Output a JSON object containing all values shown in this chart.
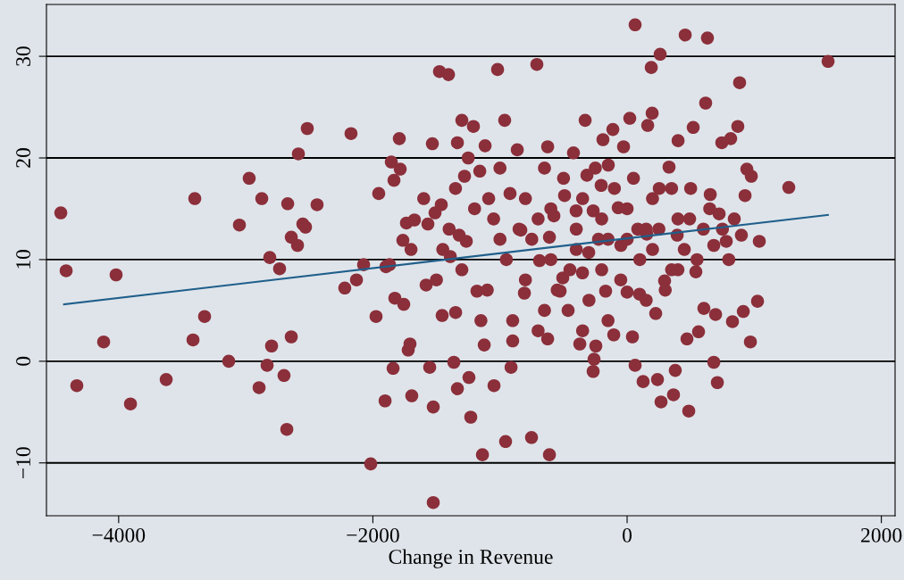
{
  "chart_data": {
    "type": "scatter",
    "xlabel": "Change in Revenue",
    "xlim": [
      -4568,
      2108
    ],
    "ylim": [
      -15.2,
      35.1
    ],
    "xticks": [
      {
        "value": -4000,
        "label": "−4000"
      },
      {
        "value": -2000,
        "label": "−2000"
      },
      0,
      2000
    ],
    "yticks": [
      {
        "value": -10,
        "label": "−10"
      },
      0,
      10,
      20,
      30
    ],
    "grid": "y",
    "marker": "circle",
    "series": [
      {
        "color": "#8b2f3a",
        "x": [
          -4455,
          -4413,
          -4329,
          -4118,
          -4020,
          -3907,
          -3626,
          -3401,
          -3324,
          -3415,
          -3134,
          -3050,
          -2973,
          -2874,
          -2895,
          -2832,
          -2811,
          -2797,
          -2734,
          -2699,
          -2677,
          -2670,
          -2642,
          -2642,
          -2593,
          -2586,
          -2551,
          -2530,
          -2516,
          -2439,
          -2221,
          -2172,
          -2129,
          -2073,
          -2017,
          -1975,
          -1954,
          -1904,
          -1897,
          -1869,
          -1855,
          -1841,
          -1834,
          -1827,
          -1792,
          -1785,
          -1764,
          -1757,
          -1736,
          -1722,
          -1708,
          -1694,
          -1673,
          -1581,
          -1567,
          -1553,
          -1532,
          -1525,
          -1525,
          -1511,
          -1476,
          -1462,
          -1455,
          -1405,
          -1391,
          -1363,
          -1349,
          -1335,
          -1335,
          -1321,
          -1300,
          -1279,
          -1265,
          -1244,
          -1230,
          -1209,
          -1181,
          -1159,
          -1138,
          -1124,
          -1117,
          -1089,
          -1047,
          -1019,
          -963,
          -956,
          -913,
          -921,
          -864,
          -836,
          -808,
          -752,
          -710,
          -689,
          -625,
          -611,
          -625,
          -611,
          -576,
          -527,
          -506,
          -492,
          -464,
          -422,
          -401,
          -372,
          -351,
          -330,
          -316,
          -302,
          -260,
          -267,
          -267,
          -246,
          -225,
          -204,
          -190,
          -169,
          -148,
          -112,
          -105,
          -70,
          -49,
          -28,
          0,
          21,
          42,
          63,
          63,
          84,
          98,
          126,
          155,
          162,
          190,
          197,
          225,
          239,
          253,
          267,
          260,
          295,
          330,
          365,
          379,
          394,
          401,
          457,
          471,
          485,
          492,
          520,
          541,
          562,
          604,
          618,
          632,
          654,
          682,
          682,
          696,
          710,
          724,
          745,
          780,
          815,
          829,
          843,
          871,
          885,
          899,
          914,
          928,
          942,
          970,
          977,
          1026,
          1040,
          1272,
          1581,
          -1200,
          -1000,
          -800,
          -600,
          -400,
          -200,
          0,
          200,
          400,
          -1300,
          -1100,
          -900,
          -700,
          -500,
          -300,
          -100,
          100,
          300,
          500,
          -1400,
          -1000,
          -800,
          -600,
          -400,
          -200,
          0,
          200,
          400,
          600,
          -1250,
          -950,
          -750,
          -550,
          -350,
          -150,
          50,
          250,
          450,
          650,
          -1150,
          -850,
          -650,
          -450,
          -250,
          -50,
          150,
          350,
          550,
          750,
          -1350,
          -1050,
          -650,
          -350,
          -150,
          150,
          350,
          -900,
          -700,
          800,
          -1600,
          -1450,
          -1700,
          -1500
        ],
        "values": [
          14.6,
          8.9,
          -2.4,
          1.9,
          8.5,
          -4.2,
          -1.8,
          16.0,
          4.4,
          2.1,
          0.0,
          13.4,
          18.0,
          16.0,
          -2.6,
          -0.4,
          10.2,
          1.5,
          9.1,
          -1.4,
          -6.7,
          15.5,
          12.2,
          2.4,
          11.4,
          20.4,
          13.5,
          13.2,
          22.9,
          15.4,
          7.2,
          22.4,
          8.0,
          9.5,
          -10.1,
          4.4,
          16.5,
          -3.9,
          9.3,
          9.5,
          19.6,
          -0.7,
          17.8,
          6.2,
          21.9,
          18.9,
          11.9,
          5.6,
          13.6,
          1.1,
          1.7,
          -3.4,
          13.9,
          7.5,
          13.5,
          -0.6,
          21.4,
          -4.5,
          -13.9,
          14.6,
          28.5,
          15.4,
          4.5,
          28.2,
          10.3,
          -0.1,
          4.8,
          -2.7,
          21.5,
          12.4,
          23.7,
          18.2,
          11.8,
          -1.6,
          -5.5,
          23.1,
          6.9,
          18.7,
          -9.2,
          1.6,
          21.2,
          16.0,
          -2.4,
          28.7,
          23.7,
          -7.9,
          -0.6,
          16.5,
          20.8,
          12.9,
          6.7,
          -7.5,
          29.2,
          9.9,
          21.1,
          -9.2,
          2.2,
          12.2,
          14.3,
          6.9,
          8.2,
          16.3,
          5.0,
          20.5,
          14.8,
          1.7,
          8.7,
          23.7,
          18.3,
          10.7,
          0.2,
          -1.0,
          14.8,
          1.5,
          12.0,
          17.3,
          21.8,
          6.9,
          19.3,
          22.8,
          2.6,
          15.1,
          11.4,
          21.1,
          6.8,
          23.9,
          2.4,
          -0.4,
          33.1,
          13.0,
          6.6,
          -2.0,
          12.5,
          23.2,
          28.9,
          24.4,
          4.7,
          -1.8,
          17.0,
          -4.0,
          30.2,
          7.9,
          19.1,
          -3.3,
          -0.9,
          12.4,
          21.7,
          32.1,
          2.2,
          -4.9,
          14.0,
          23.0,
          8.8,
          2.9,
          5.2,
          25.4,
          31.8,
          16.4,
          11.4,
          -0.1,
          4.6,
          -2.1,
          14.5,
          21.5,
          11.8,
          21.9,
          3.9,
          14.0,
          23.1,
          27.4,
          12.4,
          4.9,
          16.3,
          18.9,
          1.9,
          18.2,
          5.9,
          11.8,
          17.1,
          29.5,
          15,
          12,
          16,
          10,
          13,
          9,
          15,
          11,
          14,
          9,
          7,
          4,
          14,
          18,
          6,
          17,
          10,
          7,
          17,
          13,
          19,
          8,
          15,
          11,
          14,
          12,
          16,
          9,
          13,
          20,
          10,
          12,
          7,
          16,
          12,
          18,
          13,
          11,
          15,
          4,
          13,
          19,
          9,
          19,
          8,
          13,
          17,
          10,
          13,
          17,
          14,
          5,
          3,
          4,
          6,
          9,
          2,
          3,
          10,
          16,
          11,
          11,
          8
        ]
      },
      {
        "type": "line",
        "marker": "none",
        "color": "#1f5f8b",
        "x": [
          -4430,
          1580
        ],
        "values": [
          5.6,
          14.4
        ]
      }
    ]
  }
}
